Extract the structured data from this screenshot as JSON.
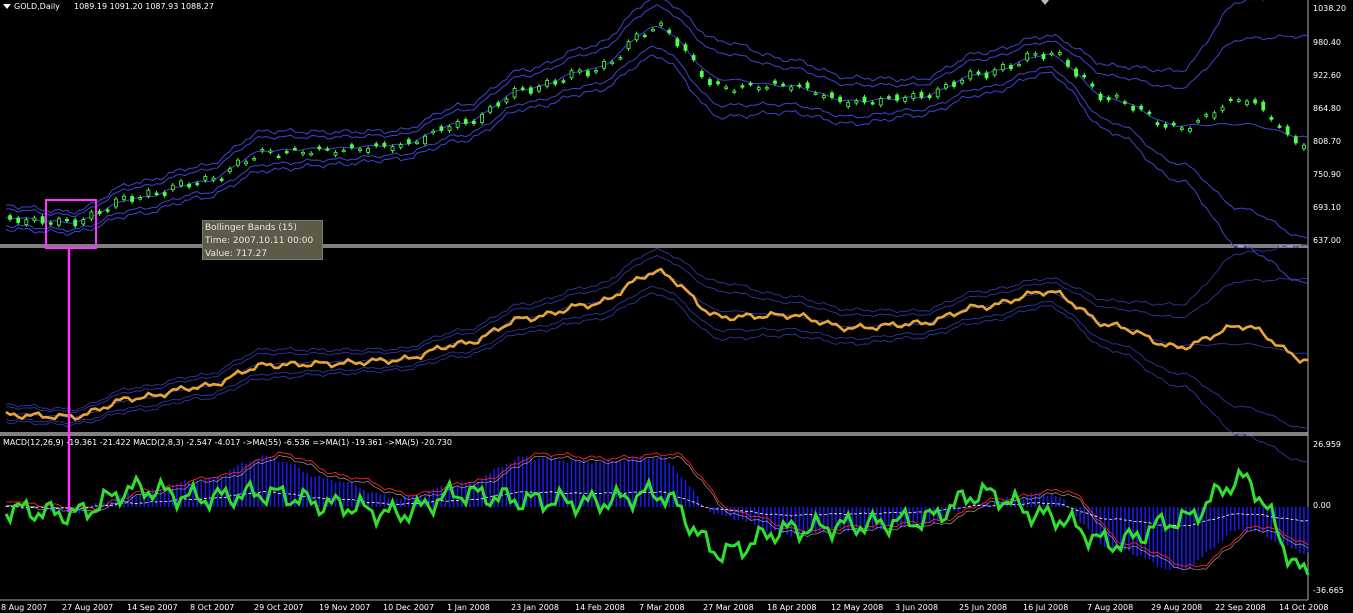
{
  "window": {
    "symbol_label": "GOLD,Daily",
    "ohlc": "1089.19 1091.20 1087.93 1088.27"
  },
  "colors": {
    "background": "#000000",
    "bollinger_band": "#3c46d2",
    "candle_bull": "#4cff4c",
    "line_orange": "#e8a636",
    "macd_histogram": "#1a1ae6",
    "macd_fast_line": "#2fe02f",
    "highlight_box": "#ff33ff",
    "separator": "#ffffff"
  },
  "tooltip": {
    "line1": "Bollinger Bands (15)",
    "line2": "Time: 2007.10.11 00:00",
    "line3": "Value: 717.27"
  },
  "macd_header": "MACD(12,26,9) -19.361 -21.422  MACD(2,8,3) -2.547 -4.017  ->MA(55) -6.536  =>MA(1) -19.361  ->MA(5) -20.730",
  "price_axis": [
    "1038.20",
    "980.40",
    "922.60",
    "864.80",
    "808.70",
    "750.90",
    "693.10",
    "637.00"
  ],
  "macd_axis": [
    "26.959",
    "0.00",
    "-36.665"
  ],
  "date_axis": [
    "8 Aug 2007",
    "27 Aug 2007",
    "14 Sep 2007",
    "8 Oct 2007",
    "29 Oct 2007",
    "19 Nov 2007",
    "10 Dec 2007",
    "1 Jan 2008",
    "23 Jan 2008",
    "14 Feb 2008",
    "7 Mar 2008",
    "27 Mar 2008",
    "18 Apr 2008",
    "12 May 2008",
    "3 Jun 2008",
    "25 Jun 2008",
    "16 Jul 2008",
    "7 Aug 2008",
    "29 Aug 2008",
    "22 Sep 2008",
    "14 Oct 2008"
  ],
  "chart_data": {
    "type": "line",
    "instrument": "GOLD",
    "timeframe": "Daily",
    "x": [
      "8 Aug 2007",
      "27 Aug 2007",
      "14 Sep 2007",
      "8 Oct 2007",
      "29 Oct 2007",
      "19 Nov 2007",
      "10 Dec 2007",
      "1 Jan 2008",
      "23 Jan 2008",
      "14 Feb 2008",
      "7 Mar 2008",
      "27 Mar 2008",
      "18 Apr 2008",
      "12 May 2008",
      "3 Jun 2008",
      "25 Jun 2008",
      "16 Jul 2008",
      "7 Aug 2008",
      "29 Aug 2008",
      "22 Sep 2008",
      "14 Oct 2008"
    ],
    "price_ylim": [
      637.0,
      1038.2
    ],
    "price_series": {
      "name": "GOLD,Daily",
      "values": [
        672,
        668,
        712,
        738,
        788,
        792,
        800,
        838,
        898,
        930,
        1005,
        900,
        905,
        875,
        885,
        925,
        960,
        880,
        830,
        880,
        800
      ]
    },
    "bollinger_bands": {
      "name": "Bollinger Bands (15)",
      "upper": [
        690,
        680,
        728,
        756,
        815,
        815,
        818,
        860,
        922,
        960,
        1040,
        960,
        935,
        905,
        905,
        950,
        980,
        920,
        900,
        985,
        990
      ],
      "lower": [
        662,
        655,
        690,
        718,
        768,
        776,
        784,
        818,
        875,
        905,
        970,
        870,
        872,
        850,
        862,
        900,
        935,
        840,
        770,
        690,
        640
      ]
    },
    "macd_ylim": [
      -36.665,
      26.959
    ],
    "macd_histogram": {
      "name": "MACD(12,26,9)",
      "values": [
        0,
        -2,
        6,
        12,
        22,
        12,
        4,
        10,
        22,
        20,
        22,
        -4,
        -12,
        -10,
        -8,
        2,
        6,
        -18,
        -28,
        -10,
        -20
      ]
    },
    "macd_fast": {
      "name": "MACD(2,8,3)",
      "values": [
        -1,
        -3,
        8,
        4,
        6,
        1,
        -3,
        6,
        3,
        2,
        6,
        -20,
        -10,
        -8,
        -6,
        6,
        -4,
        -16,
        -6,
        12,
        -30
      ]
    },
    "annotation": {
      "label": "Bollinger Bands (15)",
      "time": "2007.10.11 00:00",
      "value": 717.27
    }
  }
}
